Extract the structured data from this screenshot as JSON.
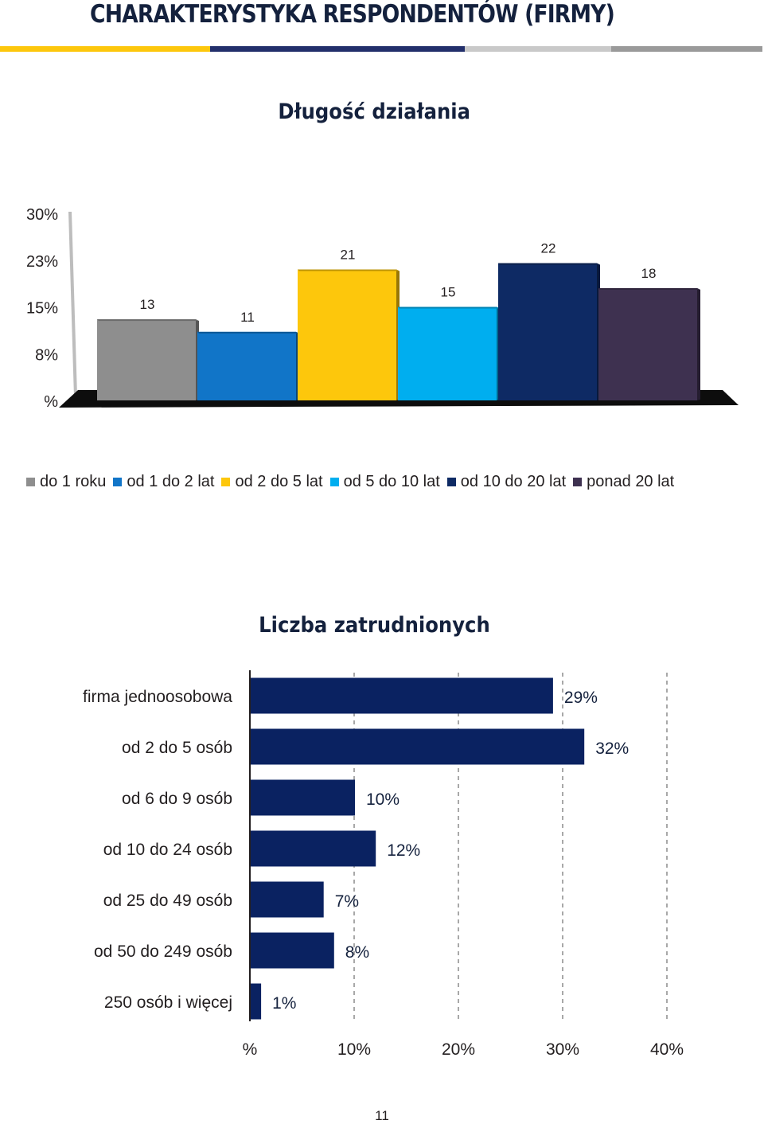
{
  "page": {
    "title": "CHARAKTERYSTYKA RESPONDENTÓW (FIRMY)",
    "page_number": "11",
    "stripe_colors": [
      "#fdc70c",
      "#222f6b",
      "#c9c9c9",
      "#9a9a9a"
    ]
  },
  "chart_data": [
    {
      "type": "bar",
      "title": "Długość działania",
      "categories": [
        "do 1 roku",
        "od 1 do 2 lat",
        "od 2 do 5 lat",
        "od 5 do 10 lat",
        "od 10 do 20 lat",
        "ponad 20 lat"
      ],
      "values": [
        13,
        11,
        21,
        15,
        22,
        18
      ],
      "data_labels": [
        "13",
        "11",
        "21",
        "15",
        "22",
        "18"
      ],
      "colors": [
        "#8e8e8e",
        "#1175c8",
        "#fdc70c",
        "#00aeef",
        "#0e2a64",
        "#3e3150"
      ],
      "y_ticks": [
        {
          "value": 0,
          "label": "%"
        },
        {
          "value": 7.5,
          "label": "8%"
        },
        {
          "value": 15,
          "label": "15%"
        },
        {
          "value": 22.5,
          "label": "23%"
        },
        {
          "value": 30,
          "label": "30%"
        }
      ],
      "ylim": [
        0,
        30
      ],
      "legend_position": "bottom",
      "grid": false
    },
    {
      "type": "bar",
      "orientation": "horizontal",
      "title": "Liczba zatrudnionych",
      "categories": [
        "firma jednoosobowa",
        "od 2 do 5 osób",
        "od 6 do 9 osób",
        "od 10 do 24 osób",
        "od 25 do 49 osób",
        "od 50 do 249 osób",
        "250 osób i więcej"
      ],
      "values": [
        29,
        32,
        10,
        12,
        7,
        8,
        1
      ],
      "data_labels": [
        "29%",
        "32%",
        "10%",
        "12%",
        "7%",
        "8%",
        "1%"
      ],
      "color": "#0a2261",
      "x_ticks": [
        {
          "value": 0,
          "label": "%"
        },
        {
          "value": 10,
          "label": "10%"
        },
        {
          "value": 20,
          "label": "20%"
        },
        {
          "value": 30,
          "label": "30%"
        },
        {
          "value": 40,
          "label": "40%"
        }
      ],
      "xlim": [
        0,
        40
      ],
      "grid": "vertical dashed",
      "legend_position": "none"
    }
  ]
}
